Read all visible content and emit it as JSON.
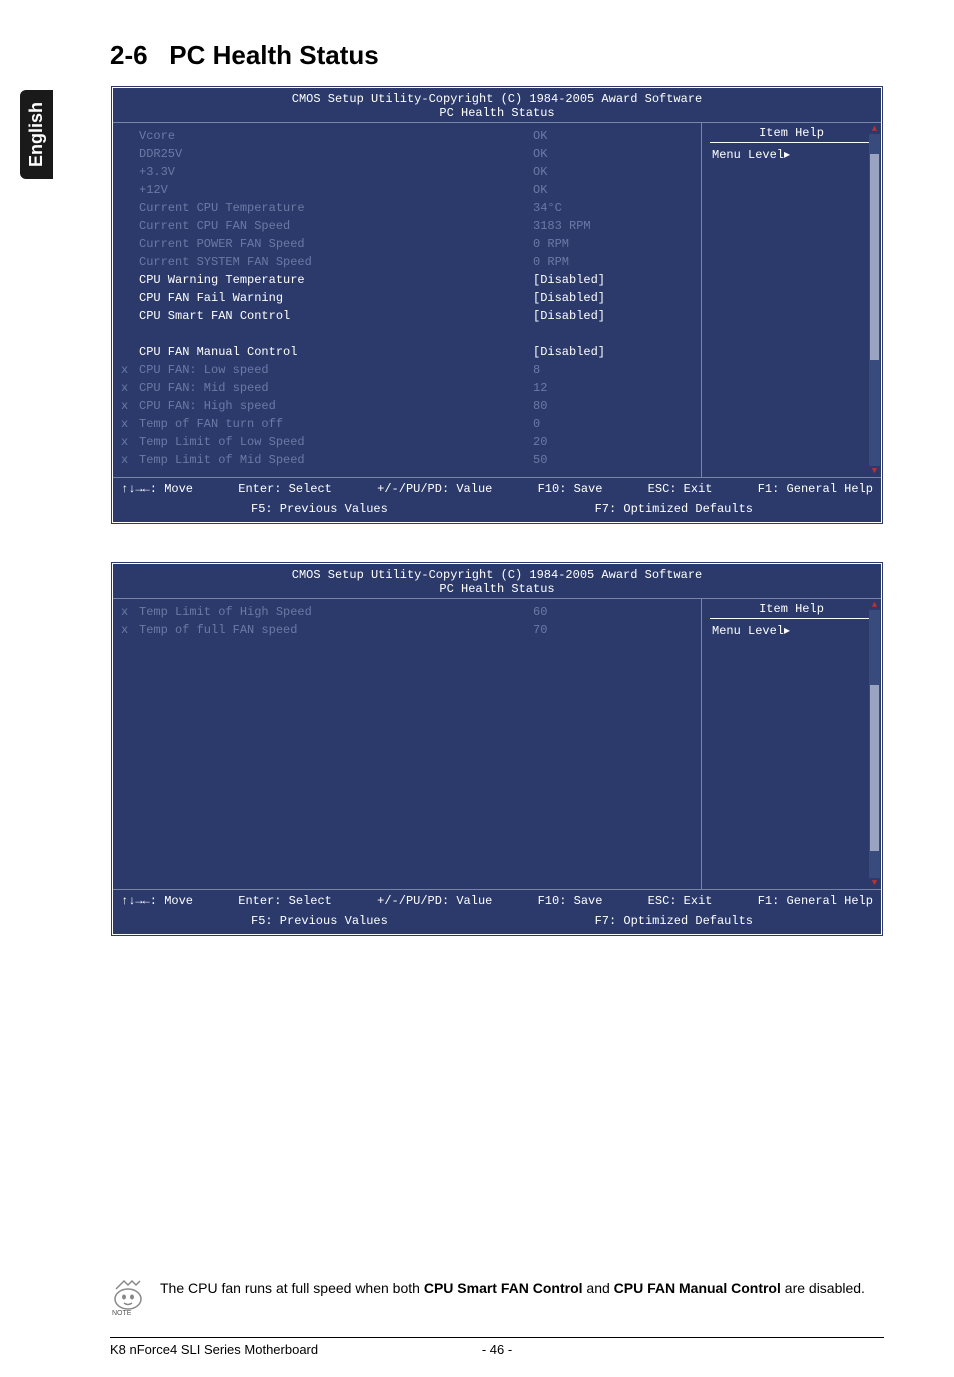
{
  "side_tab": "English",
  "section": {
    "num": "2-6",
    "title": "PC Health Status"
  },
  "bios": {
    "colors": {
      "panel_bg": "#2b3a6b",
      "border": "#ffffff",
      "dim": "#6a7aa5",
      "mid": "#a0aac7",
      "bright": "#ffffff",
      "arrow": "#c03030",
      "track": "#394a7d",
      "thumb": "#9aa4c2"
    },
    "header_line1": "CMOS Setup Utility-Copyright (C) 1984-2005 Award Software",
    "header_line2": "PC Health Status",
    "item_help": "Item Help",
    "menu_level": "Menu Level",
    "footer": {
      "move": "↑↓→←: Move",
      "select": "Enter: Select",
      "value": "+/-/PU/PD: Value",
      "save": "F10: Save",
      "exit": "ESC: Exit",
      "general": "F1: General Help",
      "prev": "F5: Previous Values",
      "defaults": "F7: Optimized Defaults"
    }
  },
  "panel1": {
    "rows": [
      {
        "prefix": "",
        "label": "Vcore",
        "value": "OK",
        "tone": "dim"
      },
      {
        "prefix": "",
        "label": "DDR25V",
        "value": "OK",
        "tone": "dim"
      },
      {
        "prefix": "",
        "label": "+3.3V",
        "value": "OK",
        "tone": "dim"
      },
      {
        "prefix": "",
        "label": "+12V",
        "value": "OK",
        "tone": "dim"
      },
      {
        "prefix": "",
        "label": "Current CPU Temperature",
        "value": "34°C",
        "tone": "dim"
      },
      {
        "prefix": "",
        "label": "Current CPU FAN Speed",
        "value": "3183 RPM",
        "tone": "dim"
      },
      {
        "prefix": "",
        "label": "Current POWER FAN Speed",
        "value": "0      RPM",
        "tone": "dim"
      },
      {
        "prefix": "",
        "label": "Current SYSTEM FAN Speed",
        "value": "0      RPM",
        "tone": "dim"
      },
      {
        "prefix": "",
        "label": "CPU Warning Temperature",
        "value": "[Disabled]",
        "tone": "bright"
      },
      {
        "prefix": "",
        "label": "CPU FAN Fail Warning",
        "value": "[Disabled]",
        "tone": "bright"
      },
      {
        "prefix": "",
        "label": "CPU Smart FAN Control",
        "value": "[Disabled]",
        "tone": "bright"
      },
      {
        "prefix": "",
        "label": "",
        "value": "",
        "tone": "blank"
      },
      {
        "prefix": "",
        "label": "CPU FAN Manual Control",
        "value": "[Disabled]",
        "tone": "bright"
      },
      {
        "prefix": "x",
        "label": "CPU FAN: Low speed",
        "value": "8",
        "tone": "dim"
      },
      {
        "prefix": "x",
        "label": "CPU FAN: Mid speed",
        "value": "12",
        "tone": "dim"
      },
      {
        "prefix": "x",
        "label": "CPU FAN: High speed",
        "value": "80",
        "tone": "dim"
      },
      {
        "prefix": "x",
        "label": "Temp of FAN turn off",
        "value": "0",
        "tone": "dim"
      },
      {
        "prefix": "x",
        "label": "Temp Limit of Low Speed",
        "value": "20",
        "tone": "dim"
      },
      {
        "prefix": "x",
        "label": "Temp Limit of Mid Speed",
        "value": "50",
        "tone": "dim"
      }
    ],
    "scrollbar": {
      "thumb_top_pct": 6,
      "thumb_height_pct": 62
    }
  },
  "panel2": {
    "rows": [
      {
        "prefix": "x",
        "label": "Temp Limit of High Speed",
        "value": "60",
        "tone": "dim"
      },
      {
        "prefix": "x",
        "label": "Temp of full FAN speed",
        "value": "70",
        "tone": "dim"
      }
    ],
    "scrollbar": {
      "thumb_top_pct": 28,
      "thumb_height_pct": 62
    }
  },
  "note": {
    "label": "NOTE",
    "text_pre": "The CPU fan runs at full speed when both ",
    "b1": "CPU Smart FAN Control",
    "text_mid": " and ",
    "b2": "CPU FAN Manual Control",
    "text_post": " are disabled."
  },
  "footer": {
    "left": "K8 nForce4 SLI Series Motherboard",
    "page": "- 46 -"
  }
}
